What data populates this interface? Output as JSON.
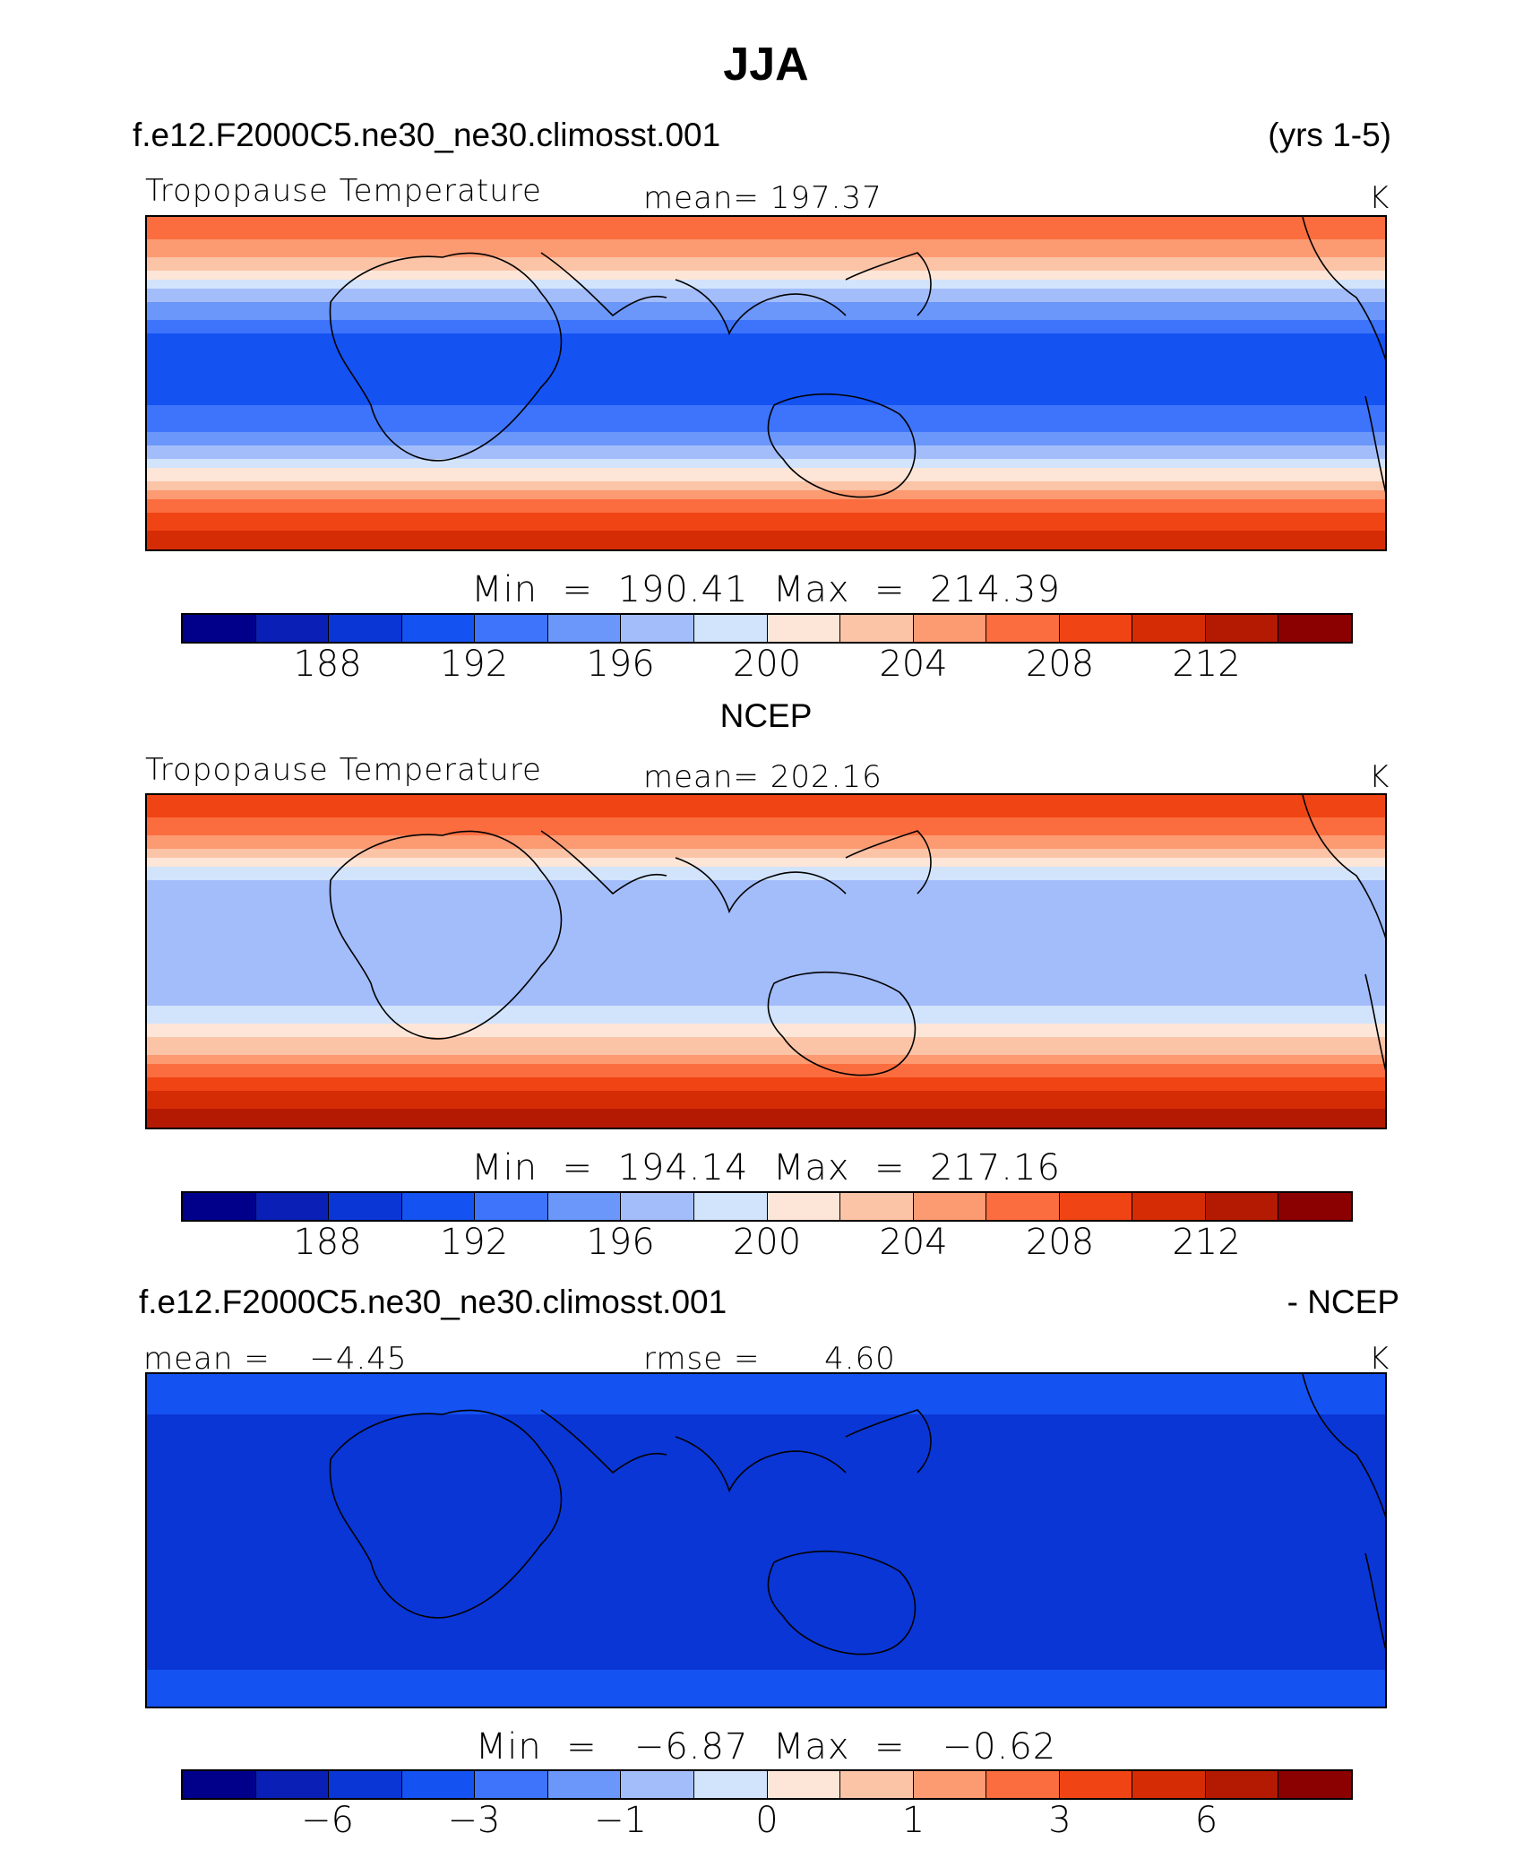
{
  "page": {
    "title": "JJA"
  },
  "header": {
    "case_name": "f.e12.F2000C5.ne30_ne30.climosst.001",
    "years": "(yrs 1-5)"
  },
  "colors": [
    "#00008b",
    "#0a1fb5",
    "#0a36d6",
    "#1552f2",
    "#3d74fb",
    "#6b97fb",
    "#a3bdfb",
    "#d2e3fc",
    "#fde6d8",
    "#fcc4a7",
    "#fc9a72",
    "#fb6d3f",
    "#f04415",
    "#d52c06",
    "#b41902",
    "#8b0000"
  ],
  "panels": [
    {
      "id": "model",
      "variable": "Tropopause Temperature",
      "mean_label": "mean=",
      "mean_value": "197.37",
      "units": "K",
      "min_label": "Min",
      "min_value": "190.41",
      "max_label": "Max",
      "max_value": "214.39",
      "ticks": [
        "188",
        "192",
        "196",
        "200",
        "204",
        "208",
        "212"
      ]
    },
    {
      "id": "obs",
      "subtitle": "NCEP",
      "variable": "Tropopause Temperature",
      "mean_label": "mean=",
      "mean_value": "202.16",
      "units": "K",
      "min_label": "Min",
      "min_value": "194.14",
      "max_label": "Max",
      "max_value": "217.16",
      "ticks": [
        "188",
        "192",
        "196",
        "200",
        "204",
        "208",
        "212"
      ]
    },
    {
      "id": "diff",
      "case_name": "f.e12.F2000C5.ne30_ne30.climosst.001",
      "case_suffix": "- NCEP",
      "mean_label": "mean =",
      "mean_value": "−4.45",
      "rmse_label": "rmse =",
      "rmse_value": "4.60",
      "units": "K",
      "min_label": "Min",
      "min_value": "−6.87",
      "max_label": "Max",
      "max_value": "−0.62",
      "ticks": [
        "−6",
        "−3",
        "−1",
        "0",
        "1",
        "3",
        "6"
      ]
    }
  ],
  "chart_data": [
    {
      "type": "heatmap",
      "title": "Tropopause Temperature",
      "units": "K",
      "mean": 197.37,
      "min": 190.41,
      "max": 214.39,
      "levels": [
        186,
        188,
        190,
        192,
        194,
        196,
        198,
        200,
        202,
        204,
        206,
        208,
        210,
        212,
        214
      ],
      "latitude_profile": {
        "lat": [
          60,
          45,
          30,
          15,
          0,
          -15,
          -30,
          -45,
          -60
        ],
        "value": [
          208,
          204,
          196,
          191,
          191,
          193,
          200,
          208,
          212
        ]
      }
    },
    {
      "type": "heatmap",
      "title": "NCEP Tropopause Temperature",
      "units": "K",
      "mean": 202.16,
      "min": 194.14,
      "max": 217.16,
      "levels": [
        186,
        188,
        190,
        192,
        194,
        196,
        198,
        200,
        202,
        204,
        206,
        208,
        210,
        212,
        214
      ],
      "latitude_profile": {
        "lat": [
          60,
          45,
          30,
          15,
          0,
          -15,
          -30,
          -45,
          -60
        ],
        "value": [
          210,
          206,
          198,
          196,
          197,
          198,
          203,
          210,
          214
        ]
      }
    },
    {
      "type": "heatmap",
      "title": "f.e12.F2000C5.ne30_ne30.climosst.001 - NCEP",
      "units": "K",
      "mean": -4.45,
      "rmse": 4.6,
      "min": -6.87,
      "max": -0.62,
      "levels": [
        -8,
        -6,
        -4,
        -3,
        -2,
        -1,
        -0.5,
        0,
        0.5,
        1,
        2,
        3,
        4,
        6,
        8
      ],
      "latitude_profile": {
        "lat": [
          60,
          45,
          30,
          15,
          0,
          -15,
          -30,
          -45,
          -60
        ],
        "value": [
          -3,
          -4,
          -5,
          -5,
          -5,
          -5,
          -5,
          -4,
          -3
        ]
      }
    }
  ]
}
